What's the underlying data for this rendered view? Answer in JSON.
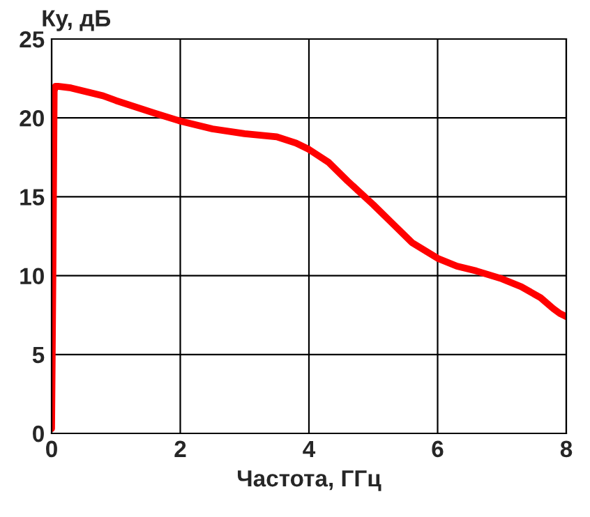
{
  "chart_data": {
    "type": "line",
    "xlabel": "Частота, ГГц",
    "ylabel": "Ку, дБ",
    "series": [
      {
        "color": "#ff0000",
        "x": [
          0,
          0.02,
          0.04,
          0.06,
          0.1,
          0.3,
          0.5,
          0.8,
          1,
          1.3,
          1.6,
          2,
          2.5,
          3,
          3.5,
          3.8,
          4,
          4.3,
          4.6,
          5,
          5.3,
          5.6,
          6,
          6.3,
          6.6,
          7,
          7.3,
          7.6,
          7.8,
          7.9,
          8
        ],
        "values": [
          0.3,
          10,
          21.7,
          22,
          22,
          21.9,
          21.7,
          21.4,
          21.1,
          20.7,
          20.3,
          19.8,
          19.3,
          19,
          18.8,
          18.4,
          18,
          17.2,
          16,
          14.5,
          13.3,
          12.1,
          11.1,
          10.6,
          10.3,
          9.8,
          9.3,
          8.6,
          7.9,
          7.6,
          7.4
        ]
      }
    ],
    "xlim": [
      0,
      8
    ],
    "ylim": [
      0,
      25
    ],
    "xticks": [
      0,
      2,
      4,
      6,
      8
    ],
    "yticks": [
      0,
      5,
      10,
      15,
      20,
      25
    ],
    "grid": true,
    "marker": "none",
    "line_style": "solid"
  }
}
